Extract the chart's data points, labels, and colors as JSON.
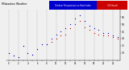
{
  "title_left": "Milwaukee Weather",
  "hours": [
    0,
    1,
    2,
    3,
    4,
    5,
    6,
    7,
    8,
    9,
    10,
    11,
    12,
    13,
    14,
    15,
    16,
    17,
    18,
    19,
    20,
    21,
    22,
    23
  ],
  "temp": [
    30,
    28,
    27,
    35,
    30,
    29,
    33,
    36,
    36,
    38,
    40,
    42,
    43,
    47,
    50,
    52,
    48,
    46,
    44,
    43,
    42,
    42,
    41,
    40
  ],
  "heat_index": [
    30,
    28,
    27,
    35,
    30,
    29,
    33,
    36,
    36,
    40,
    43,
    45,
    47,
    50,
    54,
    56,
    52,
    49,
    47,
    46,
    44,
    44,
    42,
    41
  ],
  "temp_color": "#cc0000",
  "heat_color": "#0000cc",
  "bg_color": "#f0f0f0",
  "plot_bg": "#f0f0f0",
  "grid_color": "#999999",
  "ylim": [
    25,
    60
  ],
  "yticks": [
    30,
    35,
    40,
    45,
    50,
    55
  ],
  "ytick_labels": [
    "30",
    "35",
    "40",
    "45",
    "50",
    "55"
  ],
  "xticks": [
    0,
    1,
    2,
    3,
    4,
    5,
    6,
    7,
    8,
    9,
    10,
    11,
    12,
    13,
    14,
    15,
    16,
    17,
    18,
    19,
    20,
    21,
    22,
    23
  ],
  "title_bg_blue": "#0000cc",
  "title_bg_red": "#cc0000",
  "header_text": "Milwaukee Weather",
  "header_mid": " Outdoor Temperature vs Heat Index",
  "header_right": "(24 Hours)"
}
